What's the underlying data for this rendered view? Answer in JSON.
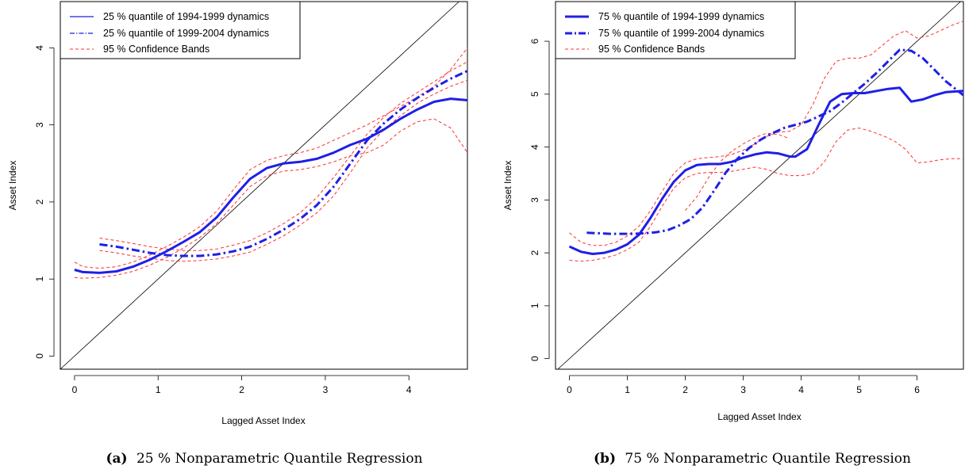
{
  "panels": [
    {
      "caption_prefix": "(a)",
      "caption": "25 % Nonparametric Quantile Regression"
    },
    {
      "caption_prefix": "(b)",
      "caption": "75 % Nonparametric Quantile Regression"
    }
  ],
  "colors": {
    "estimate": "#1f1fe6",
    "band": "#ff3030",
    "diagonal": "#000000"
  },
  "chart_data": [
    {
      "type": "line",
      "xlabel": "Lagged Asset Index",
      "ylabel": "Asset Index",
      "xlim": [
        -0.17,
        4.7
      ],
      "ylim": [
        -0.17,
        4.6
      ],
      "xticks": [
        0,
        1,
        2,
        3,
        4
      ],
      "yticks": [
        0,
        1,
        2,
        3,
        4
      ],
      "legend_position": "top-left",
      "reference_line": "y = x",
      "series": [
        {
          "name": "25 % quantile of 1994-1999 dynamics",
          "style": "solid",
          "color": "#1f1fe6",
          "x": [
            0.0,
            0.1,
            0.3,
            0.5,
            0.7,
            0.9,
            1.1,
            1.3,
            1.5,
            1.7,
            1.9,
            2.1,
            2.3,
            2.5,
            2.7,
            2.9,
            3.1,
            3.3,
            3.5,
            3.7,
            3.9,
            4.1,
            4.3,
            4.5,
            4.7
          ],
          "y": [
            1.12,
            1.09,
            1.08,
            1.1,
            1.16,
            1.25,
            1.36,
            1.48,
            1.61,
            1.8,
            2.06,
            2.3,
            2.44,
            2.5,
            2.52,
            2.56,
            2.64,
            2.74,
            2.82,
            2.94,
            3.08,
            3.2,
            3.3,
            3.34,
            3.32
          ]
        },
        {
          "name": "25 % quantile of 1999-2004 dynamics",
          "style": "dashdot",
          "color": "#1f1fe6",
          "x": [
            0.3,
            0.5,
            0.7,
            0.9,
            1.1,
            1.3,
            1.5,
            1.7,
            1.9,
            2.1,
            2.3,
            2.5,
            2.7,
            2.9,
            3.1,
            3.3,
            3.5,
            3.7,
            3.9,
            4.1,
            4.3,
            4.5,
            4.7
          ],
          "y": [
            1.45,
            1.42,
            1.38,
            1.34,
            1.31,
            1.3,
            1.3,
            1.32,
            1.36,
            1.42,
            1.52,
            1.64,
            1.78,
            1.96,
            2.2,
            2.5,
            2.8,
            3.02,
            3.2,
            3.35,
            3.48,
            3.6,
            3.7
          ]
        },
        {
          "name": "95 % Confidence Bands",
          "style": "dashed",
          "color": "#ff3030",
          "x": [
            0.0,
            0.1,
            0.3,
            0.5,
            0.7,
            0.9,
            1.1,
            1.3,
            1.5,
            1.7,
            1.9,
            2.1,
            2.3,
            2.5,
            2.7,
            2.9,
            3.1,
            3.3,
            3.5,
            3.7,
            3.9,
            4.1,
            4.3,
            4.5,
            4.7
          ],
          "y": [
            1.22,
            1.16,
            1.14,
            1.16,
            1.22,
            1.31,
            1.42,
            1.54,
            1.68,
            1.88,
            2.16,
            2.42,
            2.54,
            2.6,
            2.64,
            2.7,
            2.8,
            2.9,
            3.0,
            3.12,
            3.24,
            3.36,
            3.5,
            3.72,
            4.0
          ]
        },
        {
          "name": "",
          "style": "dashed",
          "color": "#ff3030",
          "x": [
            0.0,
            0.1,
            0.3,
            0.5,
            0.7,
            0.9,
            1.1,
            1.3,
            1.5,
            1.7,
            1.9,
            2.1,
            2.3,
            2.5,
            2.7,
            2.9,
            3.1,
            3.3,
            3.5,
            3.7,
            3.9,
            4.1,
            4.3,
            4.5,
            4.7
          ],
          "y": [
            1.02,
            1.01,
            1.02,
            1.05,
            1.1,
            1.18,
            1.28,
            1.4,
            1.54,
            1.72,
            1.96,
            2.2,
            2.34,
            2.4,
            2.42,
            2.46,
            2.52,
            2.6,
            2.64,
            2.74,
            2.92,
            3.04,
            3.08,
            2.96,
            2.64
          ]
        },
        {
          "name": "",
          "style": "dashed",
          "color": "#ff3030",
          "x": [
            0.3,
            0.5,
            0.7,
            0.9,
            1.1,
            1.3,
            1.5,
            1.7,
            1.9,
            2.1,
            2.3,
            2.5,
            2.7,
            2.9,
            3.1,
            3.3,
            3.5,
            3.7,
            3.9,
            4.1,
            4.3,
            4.5,
            4.7
          ],
          "y": [
            1.53,
            1.5,
            1.46,
            1.42,
            1.39,
            1.37,
            1.37,
            1.39,
            1.44,
            1.5,
            1.6,
            1.72,
            1.86,
            2.06,
            2.32,
            2.6,
            2.88,
            3.1,
            3.28,
            3.42,
            3.56,
            3.7,
            3.82
          ]
        },
        {
          "name": "",
          "style": "dashed",
          "color": "#ff3030",
          "x": [
            0.3,
            0.5,
            0.7,
            0.9,
            1.1,
            1.3,
            1.5,
            1.7,
            1.9,
            2.1,
            2.3,
            2.5,
            2.7,
            2.9,
            3.1,
            3.3,
            3.5,
            3.7,
            3.9,
            4.1,
            4.3,
            4.5,
            4.7
          ],
          "y": [
            1.37,
            1.34,
            1.3,
            1.27,
            1.24,
            1.23,
            1.24,
            1.26,
            1.3,
            1.35,
            1.45,
            1.56,
            1.7,
            1.86,
            2.08,
            2.38,
            2.7,
            2.94,
            3.12,
            3.28,
            3.4,
            3.5,
            3.58
          ]
        }
      ]
    },
    {
      "type": "line",
      "xlabel": "Lagged Asset Index",
      "ylabel": "Asset Index",
      "xlim": [
        -0.24,
        6.8
      ],
      "ylim": [
        -0.2,
        6.75
      ],
      "xticks": [
        0,
        1,
        2,
        3,
        4,
        5,
        6
      ],
      "yticks": [
        0,
        1,
        2,
        3,
        4,
        5,
        6
      ],
      "legend_position": "top-left",
      "reference_line": "y = x",
      "series": [
        {
          "name": "75 % quantile of 1994-1999 dynamics",
          "style": "solid",
          "color": "#1f1fe6",
          "x": [
            0.0,
            0.2,
            0.4,
            0.6,
            0.8,
            1.0,
            1.2,
            1.4,
            1.6,
            1.8,
            2.0,
            2.2,
            2.4,
            2.6,
            2.8,
            3.0,
            3.2,
            3.4,
            3.6,
            3.8,
            3.9,
            4.1,
            4.3,
            4.5,
            4.7,
            4.9,
            5.1,
            5.3,
            5.5,
            5.7,
            5.9,
            6.1,
            6.3,
            6.5,
            6.8
          ],
          "y": [
            2.12,
            2.02,
            1.98,
            2.0,
            2.06,
            2.16,
            2.34,
            2.66,
            3.02,
            3.34,
            3.56,
            3.66,
            3.68,
            3.68,
            3.72,
            3.8,
            3.86,
            3.9,
            3.88,
            3.82,
            3.82,
            3.96,
            4.42,
            4.86,
            5.0,
            5.02,
            5.02,
            5.06,
            5.1,
            5.12,
            4.86,
            4.9,
            4.98,
            5.04,
            5.06
          ]
        },
        {
          "name": "75 % quantile of 1999-2004 dynamics",
          "style": "dashdot",
          "color": "#1f1fe6",
          "x": [
            0.3,
            0.5,
            0.7,
            0.9,
            1.1,
            1.3,
            1.5,
            1.7,
            1.9,
            2.1,
            2.3,
            2.5,
            2.7,
            2.9,
            3.1,
            3.3,
            3.5,
            3.7,
            3.9,
            4.1,
            4.3,
            4.5,
            4.7,
            4.9,
            5.1,
            5.3,
            5.5,
            5.7,
            5.9,
            6.1,
            6.3,
            6.5,
            6.8
          ],
          "y": [
            2.38,
            2.37,
            2.36,
            2.36,
            2.36,
            2.37,
            2.39,
            2.43,
            2.52,
            2.64,
            2.86,
            3.18,
            3.52,
            3.78,
            3.98,
            4.14,
            4.26,
            4.36,
            4.42,
            4.48,
            4.58,
            4.68,
            4.84,
            5.02,
            5.2,
            5.4,
            5.62,
            5.84,
            5.82,
            5.68,
            5.46,
            5.24,
            4.98
          ]
        },
        {
          "name": "95 % Confidence Bands",
          "style": "dashed",
          "color": "#ff3030",
          "x": [
            0.0,
            0.2,
            0.4,
            0.6,
            0.8,
            1.0,
            1.2,
            1.4,
            1.6,
            1.8,
            2.0,
            2.2,
            2.4,
            2.6,
            2.8,
            3.0,
            3.2,
            3.4,
            3.6,
            3.8,
            4.0,
            4.2,
            4.4,
            4.6,
            4.8,
            5.0,
            5.2,
            5.4,
            5.6,
            5.8,
            6.0,
            6.2,
            6.4,
            6.6,
            6.8
          ],
          "y": [
            2.38,
            2.2,
            2.14,
            2.14,
            2.2,
            2.32,
            2.5,
            2.8,
            3.16,
            3.5,
            3.7,
            3.78,
            3.8,
            3.82,
            3.86,
            3.94,
            4.06,
            4.2,
            4.28,
            4.3,
            4.42,
            4.8,
            5.3,
            5.62,
            5.68,
            5.68,
            5.74,
            5.92,
            6.1,
            6.2,
            6.06,
            6.1,
            6.2,
            6.3,
            6.38
          ]
        },
        {
          "name": "",
          "style": "dashed",
          "color": "#ff3030",
          "x": [
            0.0,
            0.2,
            0.4,
            0.6,
            0.8,
            1.0,
            1.2,
            1.4,
            1.6,
            1.8,
            2.0,
            2.2,
            2.4,
            2.6,
            2.8,
            3.0,
            3.2,
            3.4,
            3.6,
            3.8,
            4.0,
            4.2,
            4.4,
            4.6,
            4.8,
            5.0,
            5.2,
            5.4,
            5.6,
            5.8,
            6.0,
            6.2,
            6.4,
            6.6,
            6.8
          ],
          "y": [
            1.86,
            1.84,
            1.86,
            1.9,
            1.96,
            2.06,
            2.2,
            2.5,
            2.88,
            3.22,
            3.42,
            3.5,
            3.52,
            3.52,
            3.54,
            3.58,
            3.62,
            3.58,
            3.5,
            3.46,
            3.46,
            3.5,
            3.72,
            4.1,
            4.32,
            4.36,
            4.3,
            4.22,
            4.12,
            3.96,
            3.7,
            3.72,
            3.76,
            3.78,
            3.78
          ]
        },
        {
          "name": "",
          "style": "dashed",
          "color": "#ff3030",
          "x": [
            2.0,
            2.2,
            2.4,
            2.6,
            2.8,
            3.0,
            3.2,
            3.4,
            3.6,
            3.8
          ],
          "y": [
            2.8,
            3.06,
            3.42,
            3.72,
            3.92,
            4.06,
            4.18,
            4.26,
            4.24,
            4.16
          ]
        }
      ]
    }
  ]
}
